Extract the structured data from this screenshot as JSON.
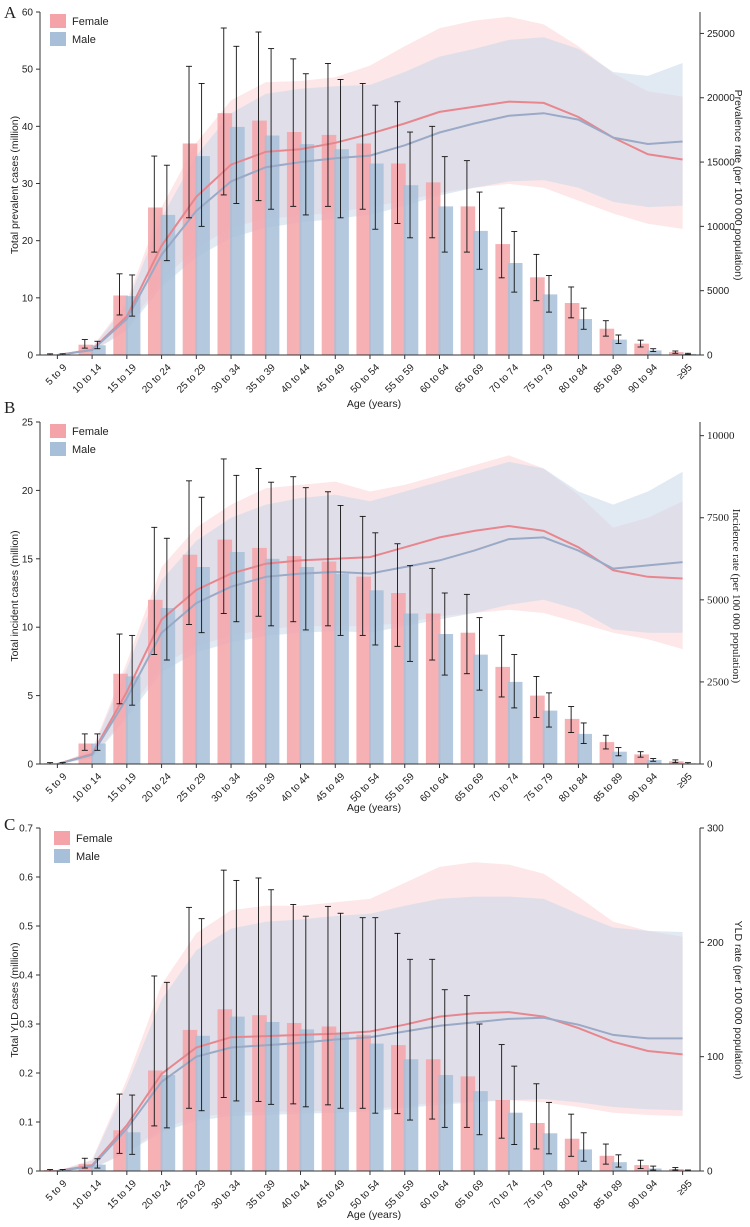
{
  "colors": {
    "female": "#f4a3a8",
    "female_band": "#fbd3d6",
    "female_line": "#e8868e",
    "male": "#a7bfd8",
    "male_band": "#c9d8ea",
    "male_line": "#9aa9c6",
    "errorbar": "#111111",
    "axis": "#333333"
  },
  "chart_data": [
    {
      "type": "bar",
      "panel": "A",
      "categories": [
        "5 to 9",
        "10 to 14",
        "15 to 19",
        "20 to 24",
        "25 to 29",
        "30 to 34",
        "35 to 39",
        "40 to 44",
        "45 to 49",
        "50 to 54",
        "55 to 59",
        "60 to 64",
        "65 to 69",
        "70 to 74",
        "75 to 79",
        "80 to 84",
        "85 to 89",
        "90 to 94",
        "≥95"
      ],
      "xlabel": "Age (years)",
      "ylabel": "Total prevalent cases (million)",
      "ylabel_right": "Prevalence rate (per 100 000 population)",
      "ylim": [
        0,
        60
      ],
      "yticks": [
        0,
        10,
        20,
        30,
        40,
        50,
        60
      ],
      "ylim_right": [
        0,
        26666
      ],
      "yticks_right": [
        0,
        5000,
        10000,
        15000,
        20000,
        25000
      ],
      "legend": [
        "Female",
        "Male"
      ],
      "series": [
        {
          "name": "Female",
          "values": [
            0.1,
            1.8,
            10.4,
            25.8,
            37.0,
            42.3,
            41.0,
            39.0,
            38.5,
            37.0,
            33.5,
            30.2,
            26.0,
            19.4,
            13.6,
            9.1,
            4.6,
            2.0,
            0.5
          ],
          "err_low": [
            0,
            1.2,
            7.0,
            18.0,
            24.0,
            28.0,
            27.0,
            26.0,
            26.0,
            25.5,
            23.0,
            20.5,
            18.0,
            13.5,
            9.5,
            6.5,
            3.3,
            1.4,
            0.3
          ],
          "err_high": [
            0.2,
            2.7,
            14.2,
            34.8,
            50.5,
            57.2,
            56.5,
            51.8,
            51.0,
            47.5,
            44.3,
            40.0,
            34.0,
            25.7,
            17.6,
            11.9,
            6.0,
            2.6,
            0.7
          ],
          "rate": [
            0,
            400,
            3000,
            8500,
            12300,
            14800,
            15800,
            16000,
            16500,
            17200,
            18000,
            18900,
            19300,
            19700,
            19600,
            18500,
            16900,
            15600,
            15200
          ],
          "rate_low": [
            0,
            250,
            2000,
            5800,
            8300,
            9900,
            10600,
            10800,
            11100,
            11500,
            12000,
            12600,
            13000,
            13300,
            13000,
            12000,
            11000,
            10200,
            9800
          ],
          "rate_high": [
            0,
            600,
            4200,
            11500,
            16500,
            19800,
            21200,
            21300,
            21600,
            22500,
            24000,
            25400,
            26000,
            26300,
            25700,
            24000,
            21900,
            20500,
            20100
          ]
        },
        {
          "name": "Male",
          "values": [
            0.1,
            1.7,
            10.3,
            24.5,
            34.8,
            39.9,
            38.4,
            36.9,
            36.0,
            33.5,
            29.7,
            26.0,
            21.7,
            16.1,
            10.6,
            6.3,
            2.7,
            0.8,
            0.2
          ],
          "err_low": [
            0,
            1.1,
            6.8,
            16.5,
            22.5,
            26.5,
            25.5,
            24.5,
            24.0,
            22.0,
            20.5,
            18.0,
            15.0,
            11.0,
            7.5,
            4.5,
            2.0,
            0.6,
            0.1
          ],
          "err_high": [
            0.2,
            2.4,
            14.0,
            33.2,
            47.5,
            54.0,
            53.6,
            49.2,
            48.2,
            43.7,
            39.0,
            34.7,
            28.5,
            21.6,
            13.9,
            8.2,
            3.5,
            1.1,
            0.3
          ],
          "rate": [
            0,
            380,
            2800,
            7800,
            11200,
            13500,
            14600,
            15000,
            15300,
            15500,
            16300,
            17300,
            18000,
            18600,
            18800,
            18300,
            16900,
            16400,
            16600
          ],
          "rate_low": [
            0,
            240,
            1900,
            5300,
            7600,
            9100,
            9900,
            10300,
            10600,
            10900,
            11600,
            12400,
            13000,
            13500,
            13600,
            13000,
            11900,
            11500,
            11600
          ],
          "rate_high": [
            0,
            560,
            3900,
            10700,
            15500,
            18800,
            20300,
            20700,
            20900,
            21000,
            22000,
            23200,
            23800,
            24500,
            24700,
            23800,
            22000,
            21700,
            22700
          ]
        }
      ]
    },
    {
      "type": "bar",
      "panel": "B",
      "categories": [
        "5 to 9",
        "10 to 14",
        "15 to 19",
        "20 to 24",
        "25 to 29",
        "30 to 34",
        "35 to 39",
        "40 to 44",
        "45 to 49",
        "50 to 54",
        "55 to 59",
        "60 to 64",
        "65 to 69",
        "70 to 74",
        "75 to 79",
        "80 to 84",
        "85 to 89",
        "90 to 94",
        "≥95"
      ],
      "xlabel": "Age (years)",
      "ylabel": "Total incident cases (million)",
      "ylabel_right": "Incidence rate (per 100 000 population)",
      "ylim": [
        0,
        25
      ],
      "yticks": [
        0,
        5,
        10,
        15,
        20,
        25
      ],
      "ylim_right": [
        0,
        10416
      ],
      "yticks_right": [
        0,
        2500,
        5000,
        7500,
        10000
      ],
      "legend": [
        "Female",
        "Male"
      ],
      "series": [
        {
          "name": "Female",
          "values": [
            0.05,
            1.5,
            6.6,
            12.0,
            15.3,
            16.4,
            15.8,
            15.2,
            14.8,
            13.7,
            12.5,
            11.0,
            9.6,
            7.1,
            5.0,
            3.3,
            1.6,
            0.7,
            0.2
          ],
          "err_low": [
            0,
            1.0,
            4.4,
            8.0,
            10.2,
            11.0,
            10.8,
            10.4,
            10.1,
            9.4,
            8.6,
            7.6,
            6.6,
            4.9,
            3.4,
            2.3,
            1.1,
            0.5,
            0.1
          ],
          "err_high": [
            0.1,
            2.2,
            9.5,
            17.3,
            20.7,
            22.3,
            21.6,
            21.0,
            19.9,
            18.1,
            16.1,
            14.3,
            12.4,
            9.4,
            6.4,
            4.2,
            2.1,
            0.9,
            0.3
          ],
          "rate": [
            0,
            300,
            2200,
            4400,
            5300,
            5800,
            6100,
            6200,
            6250,
            6300,
            6600,
            6900,
            7100,
            7250,
            7100,
            6600,
            5900,
            5700,
            5650
          ],
          "rate_low": [
            0,
            180,
            1500,
            3000,
            3600,
            3900,
            4100,
            4200,
            4200,
            4200,
            4300,
            4500,
            4600,
            4700,
            4600,
            4300,
            4000,
            3800,
            3500
          ],
          "rate_high": [
            0,
            430,
            3100,
            6000,
            7200,
            7900,
            8400,
            8500,
            8600,
            8300,
            8500,
            8800,
            9100,
            9400,
            9000,
            8200,
            7200,
            7500,
            8000
          ]
        },
        {
          "name": "Male",
          "values": [
            0.05,
            1.5,
            6.4,
            11.4,
            14.4,
            15.5,
            15.0,
            14.4,
            13.9,
            12.7,
            11.0,
            9.5,
            8.0,
            6.0,
            3.9,
            2.2,
            0.9,
            0.3,
            0.05
          ],
          "err_low": [
            0,
            1.0,
            4.3,
            7.6,
            9.6,
            10.4,
            10.1,
            9.8,
            9.4,
            8.7,
            7.5,
            6.5,
            5.4,
            4.1,
            2.7,
            1.5,
            0.6,
            0.2,
            0
          ],
          "err_high": [
            0.1,
            2.2,
            9.4,
            16.5,
            19.5,
            21.1,
            20.6,
            20.2,
            18.9,
            16.9,
            14.5,
            12.5,
            10.7,
            8.0,
            5.2,
            3.0,
            1.2,
            0.4,
            0.1
          ],
          "rate": [
            0,
            280,
            2000,
            4000,
            4900,
            5400,
            5700,
            5800,
            5850,
            5800,
            6000,
            6200,
            6500,
            6850,
            6900,
            6500,
            5950,
            6050,
            6150
          ],
          "rate_low": [
            0,
            170,
            1400,
            2800,
            3400,
            3700,
            3900,
            4000,
            4050,
            4000,
            4200,
            4400,
            4600,
            4850,
            5000,
            4700,
            4100,
            4000,
            4000
          ],
          "rate_high": [
            0,
            400,
            2900,
            5600,
            6800,
            7500,
            7900,
            8100,
            8200,
            8000,
            8300,
            8600,
            8900,
            9200,
            9000,
            8300,
            7900,
            8300,
            8900
          ]
        }
      ]
    },
    {
      "type": "bar",
      "panel": "C",
      "categories": [
        "5 to 9",
        "10 to 14",
        "15 to 19",
        "20 to 24",
        "25 to 29",
        "30 to 34",
        "35 to 39",
        "40 to 44",
        "45 to 49",
        "50 to 54",
        "55 to 59",
        "60 to 64",
        "65 to 69",
        "70 to 74",
        "75 to 79",
        "80 to 84",
        "85 to 89",
        "90 to 94",
        "≥95"
      ],
      "xlabel": "Age (years)",
      "ylabel": "Total YLD cases (million)",
      "ylabel_right": "YLD rate (per 100 000 population)",
      "ylim": [
        0,
        0.7
      ],
      "yticks": [
        0,
        0.1,
        0.2,
        0.3,
        0.4,
        0.5,
        0.6,
        0.7
      ],
      "ylim_right": [
        0,
        300
      ],
      "yticks_right": [
        0,
        100,
        200,
        300
      ],
      "legend": [
        "Female",
        "Male"
      ],
      "series": [
        {
          "name": "Female",
          "values": [
            0.002,
            0.014,
            0.083,
            0.205,
            0.288,
            0.33,
            0.318,
            0.302,
            0.295,
            0.278,
            0.257,
            0.228,
            0.193,
            0.145,
            0.098,
            0.066,
            0.031,
            0.012,
            0.004
          ],
          "err_low": [
            0,
            0.006,
            0.036,
            0.092,
            0.128,
            0.15,
            0.142,
            0.137,
            0.135,
            0.128,
            0.117,
            0.106,
            0.089,
            0.067,
            0.045,
            0.03,
            0.014,
            0.005,
            0.002
          ],
          "err_high": [
            0.003,
            0.026,
            0.157,
            0.398,
            0.538,
            0.614,
            0.598,
            0.544,
            0.54,
            0.517,
            0.485,
            0.432,
            0.358,
            0.258,
            0.178,
            0.116,
            0.055,
            0.022,
            0.007
          ],
          "rate": [
            0,
            5,
            40,
            85,
            108,
            117,
            118,
            119,
            120,
            122,
            128,
            135,
            138,
            139,
            135,
            125,
            113,
            105,
            102
          ],
          "rate_low": [
            0,
            2,
            17,
            37,
            47,
            51,
            52,
            52,
            53,
            54,
            57,
            60,
            61,
            62,
            60,
            56,
            51,
            49,
            48
          ],
          "rate_high": [
            0,
            10,
            80,
            163,
            208,
            228,
            232,
            232,
            235,
            238,
            252,
            266,
            270,
            268,
            260,
            240,
            218,
            210,
            205
          ]
        },
        {
          "name": "Male",
          "values": [
            0.002,
            0.013,
            0.079,
            0.196,
            0.276,
            0.315,
            0.304,
            0.289,
            0.281,
            0.26,
            0.228,
            0.196,
            0.163,
            0.119,
            0.077,
            0.044,
            0.018,
            0.005,
            0.001
          ],
          "err_low": [
            0,
            0.006,
            0.034,
            0.088,
            0.123,
            0.143,
            0.136,
            0.131,
            0.128,
            0.118,
            0.104,
            0.089,
            0.074,
            0.054,
            0.035,
            0.02,
            0.008,
            0.002,
            0
          ],
          "err_high": [
            0.003,
            0.025,
            0.155,
            0.385,
            0.515,
            0.593,
            0.574,
            0.52,
            0.526,
            0.517,
            0.432,
            0.37,
            0.3,
            0.214,
            0.14,
            0.078,
            0.033,
            0.01,
            0.002
          ],
          "rate": [
            0,
            4,
            37,
            78,
            100,
            108,
            110,
            112,
            115,
            117,
            122,
            127,
            130,
            133,
            134,
            128,
            119,
            116,
            116
          ],
          "rate_low": [
            0,
            2,
            16,
            34,
            44,
            48,
            49,
            50,
            51,
            52,
            55,
            58,
            60,
            62,
            63,
            60,
            56,
            54,
            53
          ],
          "rate_high": [
            0,
            9,
            75,
            150,
            193,
            212,
            218,
            220,
            223,
            225,
            232,
            238,
            240,
            240,
            238,
            225,
            213,
            210,
            209
          ]
        }
      ]
    }
  ],
  "panels": [
    {
      "letter": "A",
      "ylabel": "Total prevalent cases (million)",
      "ylabel_right": "Prevalence rate (per 100 000 population)",
      "xlabel": "Age (years)",
      "legend_female": "Female",
      "legend_male": "Male"
    },
    {
      "letter": "B",
      "ylabel": "Total incident cases (million)",
      "ylabel_right": "Incidence rate (per 100 000 population)",
      "xlabel": "Age (years)",
      "legend_female": "Female",
      "legend_male": "Male"
    },
    {
      "letter": "C",
      "ylabel": "Total YLD cases (million)",
      "ylabel_right": "YLD rate (per 100 000 population)",
      "xlabel": "Age (years)",
      "legend_female": "Female",
      "legend_male": "Male"
    }
  ]
}
